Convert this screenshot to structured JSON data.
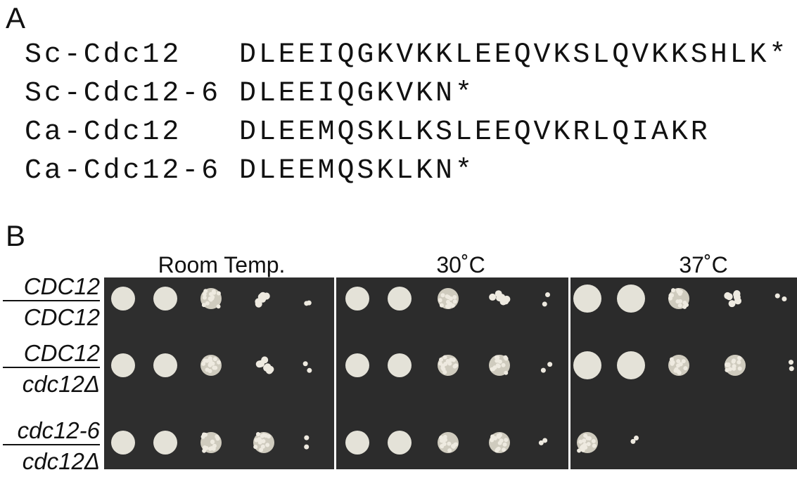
{
  "panel_a": {
    "label": "A",
    "rows": [
      {
        "name": "Sc-Cdc12",
        "sequence": "DLEEIQGKVKKLEEQVKSLQVKKSHLK*"
      },
      {
        "name": "Sc-Cdc12-6",
        "sequence": "DLEEIQGKVKN*"
      },
      {
        "name": "Ca-Cdc12",
        "sequence": "DLEEMQSKLKSLEEQVKRLQIAKR"
      },
      {
        "name": "Ca-Cdc12-6",
        "sequence": "DLEEMQSKLKN*"
      }
    ]
  },
  "panel_b": {
    "label": "B",
    "conditions": [
      "Room Temp.",
      "30˚C",
      "37˚C"
    ],
    "strains": [
      {
        "top": "CDC12",
        "bottom": "CDC12"
      },
      {
        "top": "CDC12",
        "bottom": "cdc12Δ"
      },
      {
        "top": "cdc12-6",
        "bottom": "cdc12Δ"
      }
    ]
  }
}
